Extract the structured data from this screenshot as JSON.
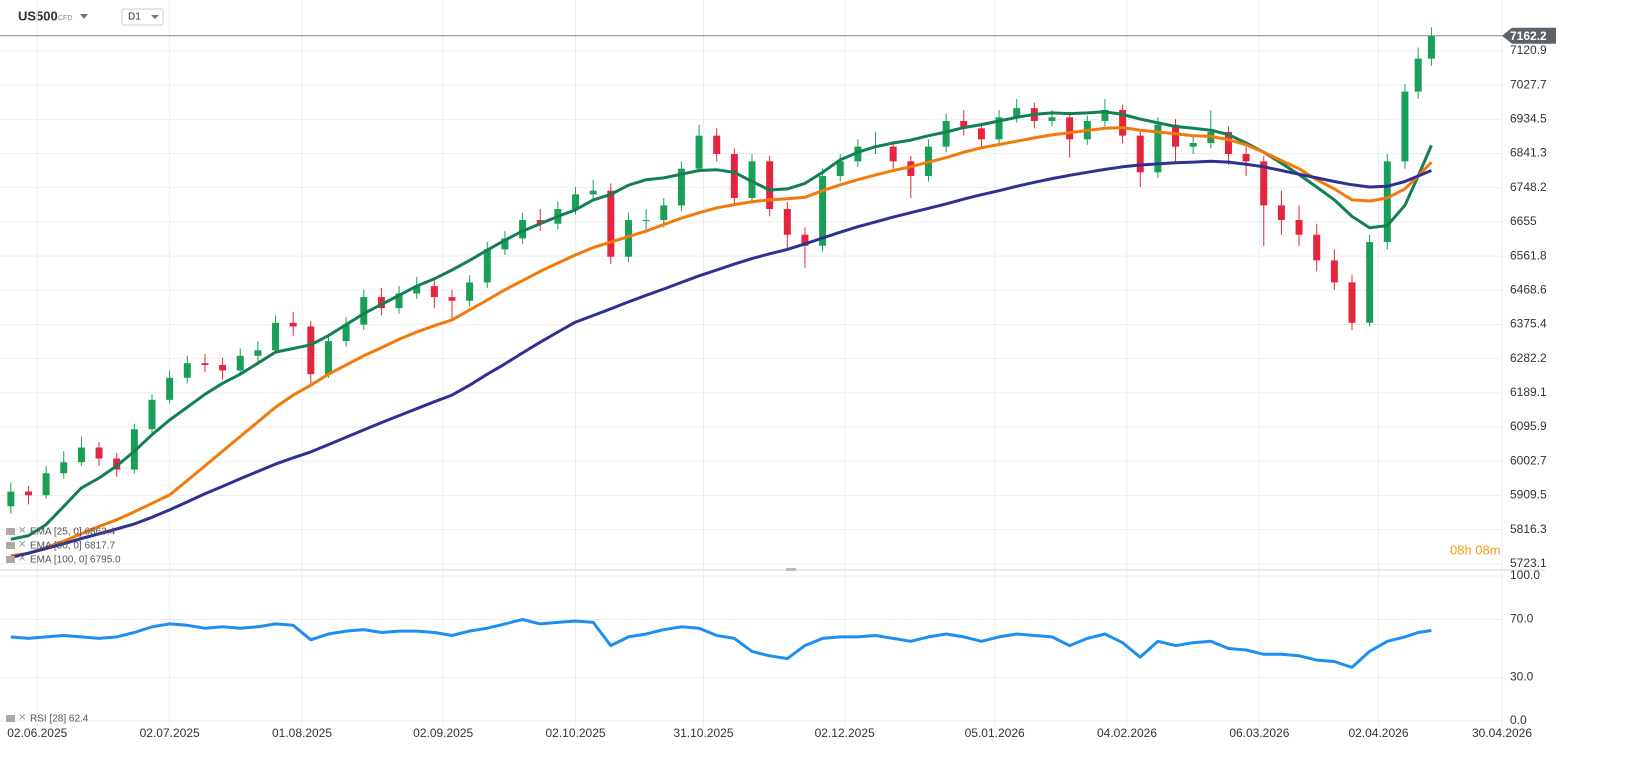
{
  "header": {
    "symbol": "US500",
    "instrument": "CFD",
    "timeframe": "D1",
    "countdown": "08h 08m"
  },
  "chart_data": [
    {
      "type": "candlestick",
      "x": [
        "27.05.2025",
        "31.05.2025",
        "04.06.2025",
        "08.06.2025",
        "12.06.2025",
        "16.06.2025",
        "20.06.2025",
        "24.06.2025",
        "28.06.2025",
        "02.07.2025",
        "06.07.2025",
        "10.07.2025",
        "14.07.2025",
        "18.07.2025",
        "22.07.2025",
        "26.07.2025",
        "30.07.2025",
        "03.08.2025",
        "07.08.2025",
        "11.08.2025",
        "15.08.2025",
        "19.08.2025",
        "23.08.2025",
        "27.08.2025",
        "31.08.2025",
        "04.09.2025",
        "08.09.2025",
        "12.09.2025",
        "16.09.2025",
        "20.09.2025",
        "24.09.2025",
        "28.09.2025",
        "02.10.2025",
        "06.10.2025",
        "10.10.2025",
        "14.10.2025",
        "18.10.2025",
        "22.10.2025",
        "26.10.2025",
        "30.10.2025",
        "03.11.2025",
        "07.11.2025",
        "11.11.2025",
        "15.11.2025",
        "19.11.2025",
        "23.11.2025",
        "27.11.2025",
        "01.12.2025",
        "05.12.2025",
        "09.12.2025",
        "13.12.2025",
        "17.12.2025",
        "21.12.2025",
        "25.12.2025",
        "29.12.2025",
        "02.01.2026",
        "06.01.2026",
        "10.01.2026",
        "14.01.2026",
        "18.01.2026",
        "22.01.2026",
        "26.01.2026",
        "30.01.2026",
        "03.02.2026",
        "07.02.2026",
        "11.02.2026",
        "15.02.2026",
        "19.02.2026",
        "23.02.2026",
        "27.02.2026",
        "03.03.2026",
        "07.03.2026",
        "11.03.2026",
        "15.03.2026",
        "19.03.2026",
        "23.03.2026",
        "27.03.2026",
        "31.03.2026",
        "04.04.2026",
        "08.04.2026",
        "11.04.2026",
        "14.04.2026"
      ],
      "open": [
        5880,
        5920,
        5910,
        5970,
        6000,
        6040,
        6010,
        5980,
        6090,
        6170,
        6230,
        6270,
        6265,
        6250,
        6290,
        6305,
        6380,
        6370,
        6240,
        6330,
        6375,
        6450,
        6420,
        6460,
        6480,
        6450,
        6440,
        6490,
        6580,
        6610,
        6660,
        6650,
        6690,
        6730,
        6740,
        6560,
        6660,
        6660,
        6700,
        6800,
        6890,
        6840,
        6720,
        6820,
        6690,
        6620,
        6590,
        6780,
        6820,
        6860,
        6860,
        6820,
        6780,
        6860,
        6930,
        6910,
        6880,
        6940,
        6965,
        6930,
        6940,
        6880,
        6930,
        6960,
        6890,
        6790,
        6920,
        6860,
        6870,
        6900,
        6840,
        6820,
        6700,
        6660,
        6620,
        6550,
        6490,
        6380,
        6600,
        6820,
        7010,
        7100
      ],
      "high": [
        5945,
        5935,
        5990,
        6030,
        6070,
        6055,
        6025,
        6105,
        6185,
        6250,
        6290,
        6295,
        6285,
        6310,
        6330,
        6400,
        6410,
        6385,
        6350,
        6395,
        6470,
        6475,
        6480,
        6505,
        6495,
        6470,
        6510,
        6600,
        6630,
        6680,
        6690,
        6710,
        6750,
        6770,
        6760,
        6680,
        6690,
        6720,
        6820,
        6920,
        6910,
        6855,
        6840,
        6835,
        6710,
        6640,
        6800,
        6840,
        6880,
        6900,
        6875,
        6835,
        6880,
        6950,
        6960,
        6925,
        6960,
        6990,
        6980,
        6960,
        6955,
        6945,
        6990,
        6975,
        6905,
        6940,
        6935,
        6890,
        6960,
        6915,
        6860,
        6835,
        6740,
        6700,
        6650,
        6580,
        6510,
        6620,
        6840,
        7030,
        7130,
        7185
      ],
      "low": [
        5860,
        5885,
        5900,
        5955,
        5990,
        5990,
        5960,
        5970,
        6080,
        6160,
        6215,
        6245,
        6225,
        6235,
        6270,
        6295,
        6345,
        6215,
        6230,
        6315,
        6360,
        6400,
        6405,
        6445,
        6420,
        6390,
        6425,
        6475,
        6565,
        6595,
        6630,
        6635,
        6675,
        6715,
        6540,
        6545,
        6625,
        6640,
        6685,
        6790,
        6820,
        6700,
        6705,
        6670,
        6580,
        6530,
        6575,
        6765,
        6805,
        6840,
        6800,
        6720,
        6765,
        6845,
        6890,
        6860,
        6865,
        6925,
        6910,
        6915,
        6830,
        6865,
        6915,
        6870,
        6750,
        6775,
        6820,
        6840,
        6855,
        6810,
        6780,
        6590,
        6620,
        6590,
        6520,
        6470,
        6360,
        6370,
        6580,
        6800,
        6990,
        7080
      ],
      "close": [
        5920,
        5910,
        5970,
        6000,
        6040,
        6010,
        5980,
        6090,
        6170,
        6230,
        6270,
        6265,
        6250,
        6290,
        6305,
        6380,
        6370,
        6240,
        6330,
        6375,
        6450,
        6420,
        6460,
        6480,
        6450,
        6440,
        6490,
        6580,
        6610,
        6660,
        6650,
        6690,
        6730,
        6740,
        6560,
        6660,
        6660,
        6700,
        6800,
        6890,
        6840,
        6720,
        6820,
        6690,
        6620,
        6590,
        6780,
        6820,
        6860,
        6860,
        6820,
        6780,
        6860,
        6930,
        6910,
        6880,
        6940,
        6965,
        6930,
        6940,
        6880,
        6930,
        6960,
        6890,
        6790,
        6920,
        6860,
        6870,
        6900,
        6840,
        6820,
        6700,
        6660,
        6620,
        6550,
        6490,
        6380,
        6600,
        6820,
        7010,
        7100,
        7162.2
      ],
      "up_color": "#18a058",
      "down_color": "#e3263d",
      "series": [
        {
          "name": "EMA [25, 0] 6863.4",
          "color": "#137f55",
          "values": [
            5790,
            5800,
            5830,
            5880,
            5930,
            5957,
            5990,
            6030,
            6075,
            6115,
            6150,
            6185,
            6215,
            6240,
            6270,
            6300,
            6310,
            6320,
            6345,
            6375,
            6405,
            6430,
            6455,
            6480,
            6500,
            6524,
            6550,
            6578,
            6605,
            6630,
            6650,
            6670,
            6688,
            6715,
            6730,
            6755,
            6770,
            6775,
            6785,
            6795,
            6797,
            6790,
            6765,
            6742,
            6745,
            6760,
            6790,
            6824,
            6845,
            6860,
            6870,
            6878,
            6890,
            6900,
            6912,
            6920,
            6930,
            6940,
            6948,
            6952,
            6950,
            6952,
            6955,
            6948,
            6935,
            6925,
            6915,
            6910,
            6905,
            6893,
            6870,
            6845,
            6815,
            6784,
            6750,
            6715,
            6670,
            6639,
            6645,
            6700,
            6780,
            6863.4
          ]
        },
        {
          "name": "EMA [50, 0] 6817.7",
          "color": "#f27a0a",
          "values": [
            5745,
            5752,
            5768,
            5785,
            5805,
            5825,
            5843,
            5865,
            5888,
            5911,
            5950,
            5990,
            6030,
            6070,
            6110,
            6150,
            6183,
            6210,
            6240,
            6265,
            6290,
            6312,
            6335,
            6355,
            6372,
            6388,
            6415,
            6442,
            6470,
            6495,
            6520,
            6543,
            6565,
            6585,
            6600,
            6615,
            6630,
            6648,
            6665,
            6680,
            6693,
            6702,
            6710,
            6715,
            6718,
            6722,
            6740,
            6756,
            6770,
            6783,
            6795,
            6805,
            6818,
            6830,
            6845,
            6857,
            6866,
            6875,
            6884,
            6892,
            6898,
            6904,
            6910,
            6912,
            6905,
            6900,
            6895,
            6890,
            6888,
            6879,
            6865,
            6845,
            6822,
            6800,
            6770,
            6745,
            6715,
            6712,
            6720,
            6745,
            6780,
            6817.7
          ]
        },
        {
          "name": "EMA [100, 0] 6795.0",
          "color": "#2e3192",
          "values": [
            5740,
            5752,
            5765,
            5778,
            5792,
            5805,
            5818,
            5832,
            5850,
            5870,
            5892,
            5914,
            5934,
            5955,
            5975,
            5995,
            6012,
            6028,
            6048,
            6068,
            6088,
            6108,
            6127,
            6146,
            6165,
            6183,
            6210,
            6240,
            6268,
            6298,
            6327,
            6355,
            6382,
            6400,
            6418,
            6437,
            6455,
            6472,
            6490,
            6508,
            6524,
            6540,
            6555,
            6568,
            6580,
            6595,
            6611,
            6627,
            6642,
            6655,
            6668,
            6680,
            6692,
            6704,
            6717,
            6729,
            6740,
            6752,
            6763,
            6773,
            6782,
            6790,
            6798,
            6805,
            6810,
            6813,
            6816,
            6818,
            6820,
            6818,
            6812,
            6805,
            6795,
            6785,
            6775,
            6765,
            6756,
            6750,
            6752,
            6765,
            6780,
            6795
          ]
        }
      ],
      "last_price": 7162.2,
      "xlim": [
        "25.05.2025",
        "30.04.2026"
      ],
      "xticks": [
        "02.06.2025",
        "02.07.2025",
        "01.08.2025",
        "02.09.2025",
        "02.10.2025",
        "31.10.2025",
        "02.12.2025",
        "05.01.2026",
        "04.02.2026",
        "06.03.2026",
        "02.04.2026",
        "30.04.2026"
      ],
      "ylim": [
        5709,
        7227
      ],
      "yticks": [
        5723.1,
        5816.3,
        5909.5,
        6002.7,
        6095.9,
        6189.1,
        6282.2,
        6375.4,
        6468.6,
        6561.8,
        6655.0,
        6748.2,
        6841.3,
        6934.5,
        7027.7,
        7120.9
      ],
      "grid": true
    },
    {
      "type": "line",
      "series": [
        {
          "name": "RSI [28] 62.4",
          "color": "#1e8ff0",
          "values": [
            58,
            57,
            58,
            59,
            58,
            57,
            58,
            61,
            65,
            67,
            66,
            64,
            65,
            64,
            65,
            67,
            66,
            56,
            60,
            62,
            63,
            61,
            62,
            62,
            61,
            59,
            62,
            64,
            67,
            70,
            67,
            68,
            69,
            68,
            52,
            58,
            60,
            63,
            65,
            64,
            59,
            57,
            48,
            45,
            43,
            52,
            57,
            58,
            58,
            59,
            57,
            55,
            58,
            60,
            58,
            55,
            58,
            60,
            59,
            58,
            52,
            57,
            60,
            54,
            44,
            55,
            52,
            54,
            55,
            50,
            49,
            46,
            46,
            45,
            42,
            41,
            37,
            48,
            55,
            58,
            61,
            62.4
          ]
        }
      ],
      "ylim": [
        0,
        100
      ],
      "yticks": [
        {
          "value": 0,
          "label": "0.0"
        },
        {
          "value": 30,
          "label": "30.0"
        },
        {
          "value": 70,
          "label": "70.0"
        },
        {
          "value": 100,
          "label": "100.0"
        }
      ],
      "grid": true
    }
  ]
}
